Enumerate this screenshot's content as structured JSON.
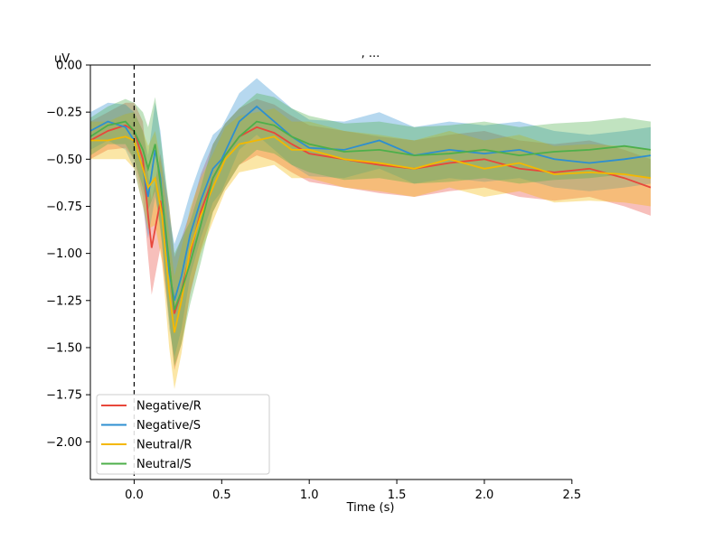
{
  "chart_data": {
    "type": "line",
    "title": ", ...",
    "xlabel": "Time (s)",
    "ylabel": "uV",
    "xlim": [
      -0.25,
      2.95
    ],
    "ylim": [
      -2.2,
      0.0
    ],
    "x_ticks": [
      0.0,
      0.5,
      1.0,
      1.5,
      2.0,
      2.5
    ],
    "x_tick_labels": [
      "0.0",
      "0.5",
      "1.0",
      "1.5",
      "2.0",
      "2.5"
    ],
    "y_ticks": [
      0.0,
      -0.25,
      -0.5,
      -0.75,
      -1.0,
      -1.25,
      -1.5,
      -1.75,
      -2.0
    ],
    "y_tick_labels": [
      "0.00",
      "−0.25",
      "−0.50",
      "−0.75",
      "−1.00",
      "−1.25",
      "−1.50",
      "−1.75",
      "−2.00"
    ],
    "x_spine_range": [
      -0.25,
      2.5
    ],
    "y_spine_range": [
      -2.2,
      0.0
    ],
    "event_marker_x": 0.0,
    "grid": false,
    "legend_position": "lower-left",
    "series": [
      {
        "name": "Negative/R",
        "color": "#e8473b",
        "x": [
          -0.25,
          -0.15,
          -0.05,
          0.0,
          0.05,
          0.08,
          0.1,
          0.15,
          0.2,
          0.23,
          0.27,
          0.32,
          0.38,
          0.45,
          0.52,
          0.6,
          0.7,
          0.8,
          0.9,
          1.0,
          1.2,
          1.4,
          1.6,
          1.8,
          2.0,
          2.2,
          2.4,
          2.6,
          2.8,
          2.95
        ],
        "values": [
          -0.4,
          -0.35,
          -0.32,
          -0.35,
          -0.5,
          -0.8,
          -0.97,
          -0.72,
          -1.05,
          -1.32,
          -1.2,
          -1.0,
          -0.78,
          -0.6,
          -0.48,
          -0.38,
          -0.33,
          -0.36,
          -0.42,
          -0.47,
          -0.5,
          -0.53,
          -0.55,
          -0.52,
          -0.5,
          -0.55,
          -0.57,
          -0.55,
          -0.6,
          -0.65
        ],
        "band": [
          0.1,
          0.1,
          0.12,
          0.15,
          0.2,
          0.22,
          0.25,
          0.25,
          0.3,
          0.3,
          0.28,
          0.22,
          0.2,
          0.18,
          0.17,
          0.15,
          0.15,
          0.15,
          0.15,
          0.15,
          0.15,
          0.15,
          0.15,
          0.15,
          0.15,
          0.15,
          0.15,
          0.15,
          0.15,
          0.15
        ]
      },
      {
        "name": "Negative/S",
        "color": "#2e8fd0",
        "x": [
          -0.25,
          -0.15,
          -0.05,
          0.0,
          0.05,
          0.08,
          0.12,
          0.15,
          0.2,
          0.23,
          0.27,
          0.32,
          0.38,
          0.45,
          0.5,
          0.6,
          0.7,
          0.8,
          0.9,
          1.0,
          1.2,
          1.4,
          1.6,
          1.8,
          2.0,
          2.2,
          2.4,
          2.6,
          2.8,
          2.95
        ],
        "values": [
          -0.35,
          -0.3,
          -0.33,
          -0.4,
          -0.55,
          -0.7,
          -0.45,
          -0.6,
          -1.1,
          -1.25,
          -1.12,
          -0.9,
          -0.72,
          -0.55,
          -0.5,
          -0.3,
          -0.22,
          -0.3,
          -0.38,
          -0.44,
          -0.45,
          -0.4,
          -0.48,
          -0.45,
          -0.47,
          -0.45,
          -0.5,
          -0.52,
          -0.5,
          -0.48
        ],
        "band": [
          0.1,
          0.1,
          0.12,
          0.15,
          0.2,
          0.22,
          0.25,
          0.25,
          0.3,
          0.3,
          0.28,
          0.22,
          0.2,
          0.18,
          0.17,
          0.15,
          0.15,
          0.15,
          0.15,
          0.15,
          0.15,
          0.15,
          0.15,
          0.15,
          0.15,
          0.15,
          0.15,
          0.15,
          0.15,
          0.15
        ]
      },
      {
        "name": "Neutral/R",
        "color": "#f4b800",
        "x": [
          -0.25,
          -0.15,
          -0.05,
          0.0,
          0.05,
          0.08,
          0.12,
          0.16,
          0.2,
          0.23,
          0.27,
          0.32,
          0.38,
          0.45,
          0.52,
          0.6,
          0.7,
          0.8,
          0.9,
          1.0,
          1.2,
          1.4,
          1.6,
          1.8,
          2.0,
          2.2,
          2.4,
          2.6,
          2.8,
          2.95
        ],
        "values": [
          -0.4,
          -0.4,
          -0.38,
          -0.4,
          -0.55,
          -0.65,
          -0.6,
          -0.8,
          -1.2,
          -1.42,
          -1.25,
          -0.98,
          -0.8,
          -0.65,
          -0.5,
          -0.42,
          -0.4,
          -0.38,
          -0.45,
          -0.45,
          -0.5,
          -0.52,
          -0.55,
          -0.5,
          -0.55,
          -0.52,
          -0.58,
          -0.57,
          -0.58,
          -0.6
        ],
        "band": [
          0.1,
          0.1,
          0.12,
          0.15,
          0.2,
          0.22,
          0.25,
          0.25,
          0.3,
          0.3,
          0.28,
          0.22,
          0.2,
          0.18,
          0.17,
          0.15,
          0.15,
          0.15,
          0.15,
          0.15,
          0.15,
          0.15,
          0.15,
          0.15,
          0.15,
          0.15,
          0.15,
          0.15,
          0.15,
          0.15
        ]
      },
      {
        "name": "Neutral/S",
        "color": "#4daf4a",
        "x": [
          -0.25,
          -0.15,
          -0.05,
          0.0,
          0.05,
          0.08,
          0.12,
          0.16,
          0.2,
          0.23,
          0.27,
          0.32,
          0.38,
          0.45,
          0.52,
          0.6,
          0.7,
          0.8,
          0.9,
          1.0,
          1.2,
          1.4,
          1.6,
          1.8,
          2.0,
          2.2,
          2.4,
          2.6,
          2.8,
          2.95
        ],
        "values": [
          -0.38,
          -0.32,
          -0.3,
          -0.35,
          -0.45,
          -0.55,
          -0.42,
          -0.7,
          -1.05,
          -1.3,
          -1.2,
          -1.05,
          -0.85,
          -0.6,
          -0.48,
          -0.38,
          -0.3,
          -0.32,
          -0.38,
          -0.42,
          -0.46,
          -0.45,
          -0.48,
          -0.47,
          -0.45,
          -0.48,
          -0.46,
          -0.45,
          -0.43,
          -0.45
        ],
        "band": [
          0.1,
          0.1,
          0.12,
          0.15,
          0.2,
          0.22,
          0.25,
          0.25,
          0.3,
          0.3,
          0.28,
          0.22,
          0.2,
          0.18,
          0.17,
          0.15,
          0.15,
          0.15,
          0.15,
          0.15,
          0.15,
          0.15,
          0.15,
          0.15,
          0.15,
          0.15,
          0.15,
          0.15,
          0.15,
          0.15
        ]
      }
    ]
  }
}
